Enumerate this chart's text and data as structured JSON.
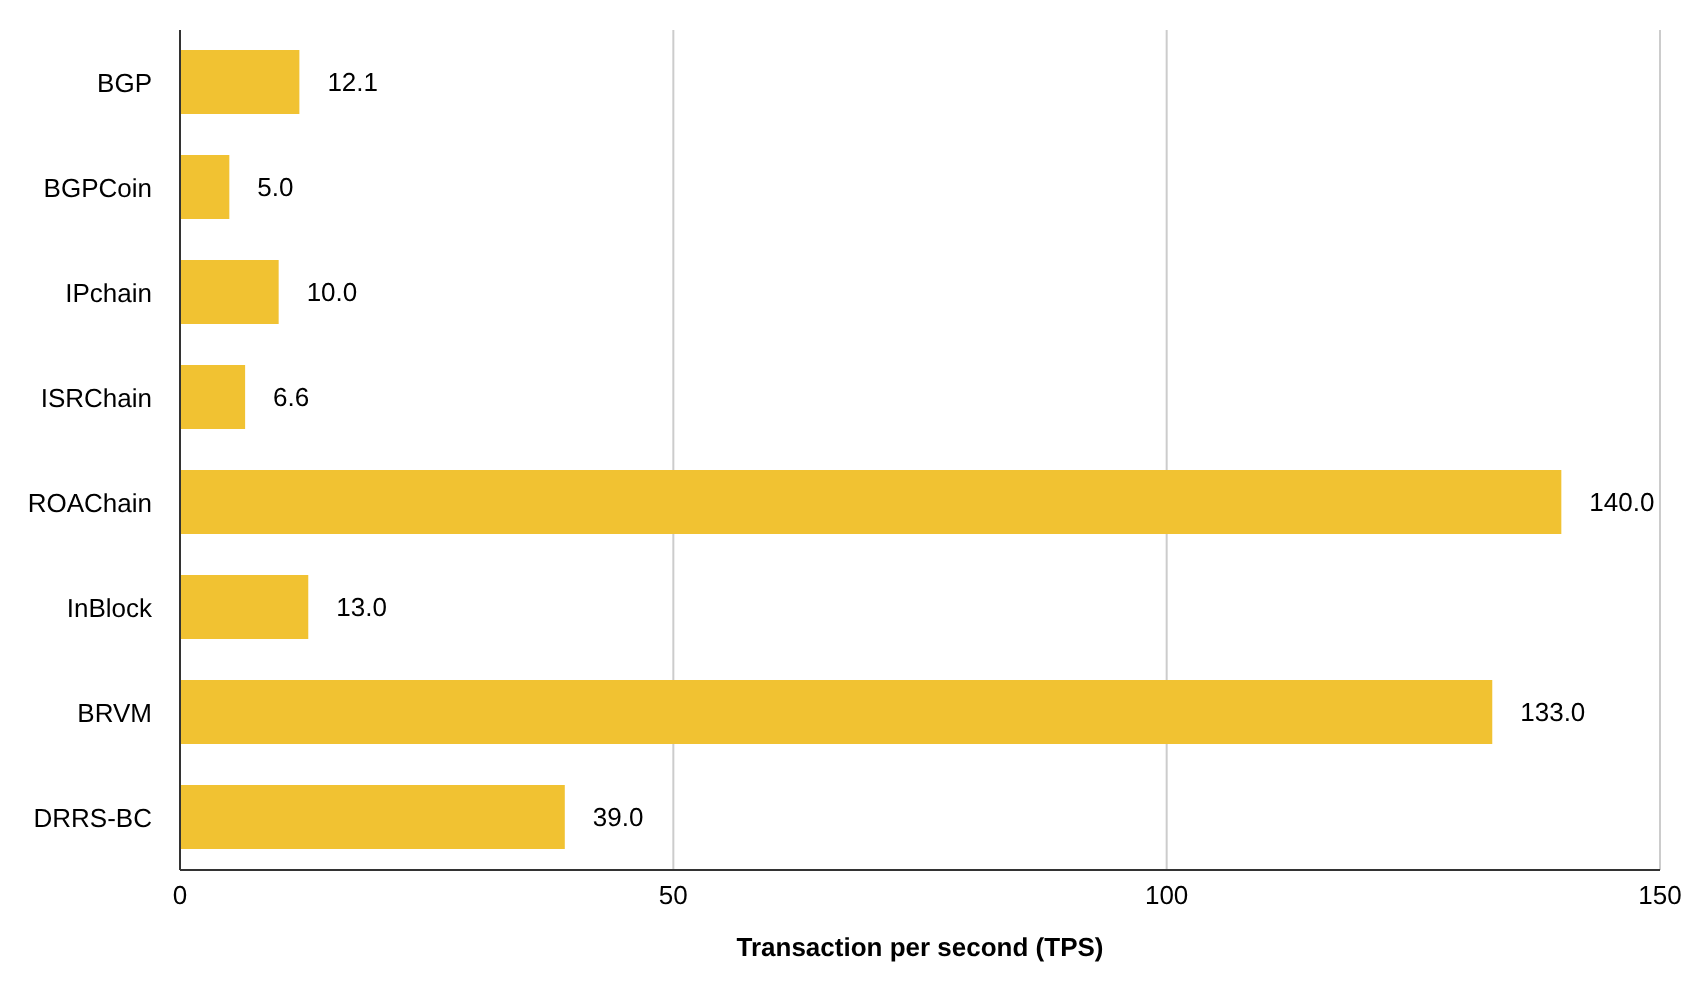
{
  "chart_data": {
    "type": "bar",
    "orientation": "horizontal",
    "xlabel": "Transaction per second (TPS)",
    "categories": [
      "BGP",
      "BGPCoin",
      "IPchain",
      "ISRChain",
      "ROAChain",
      "InBlock",
      "BRVM",
      "DRRS-BC"
    ],
    "values": [
      12.1,
      5.0,
      10.0,
      6.6,
      140.0,
      13.0,
      133.0,
      39.0
    ],
    "value_labels": [
      "12.1",
      "5.0",
      "10.0",
      "6.6",
      "140.0",
      "13.0",
      "133.0",
      "39.0"
    ],
    "color": "#f1c232",
    "xlim": [
      0,
      150
    ],
    "xticks": [
      0,
      50,
      100,
      150
    ],
    "grid": "x"
  }
}
